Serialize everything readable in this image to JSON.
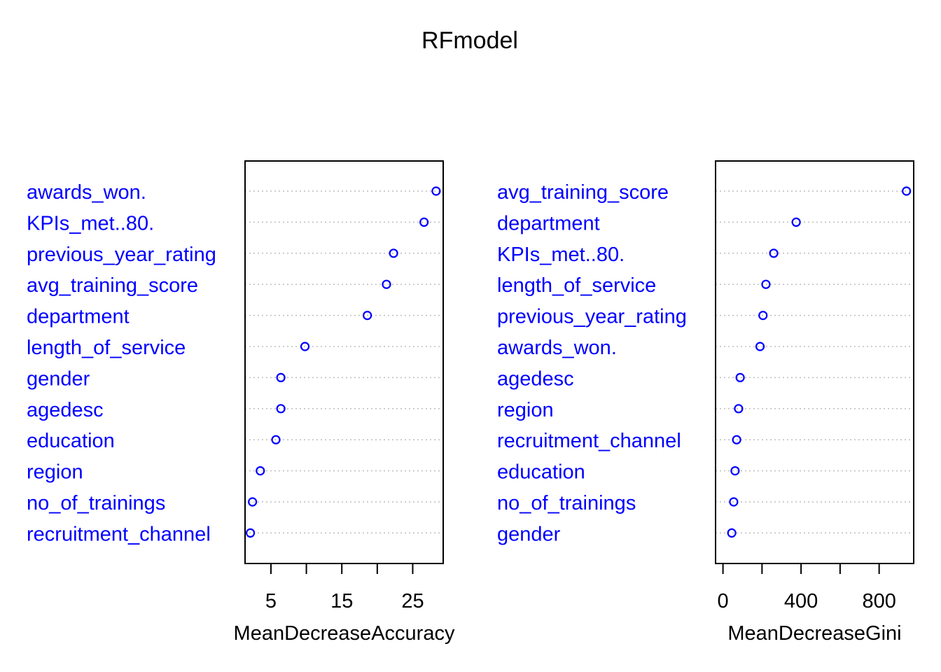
{
  "title": "RFmodel",
  "colors": {
    "label": "#0000ff",
    "point": "#0000ff",
    "axis": "#000000",
    "grid": "#bebebe"
  },
  "chart_data": [
    {
      "type": "scatter",
      "style": "dotchart",
      "xlabel": "MeanDecreaseAccuracy",
      "xticks": [
        5,
        10,
        15,
        20,
        25
      ],
      "xtick_labels": [
        "5",
        "",
        "15",
        "",
        "25"
      ],
      "xlim": [
        1.35,
        29.3
      ],
      "grid": "dotted-horizontal",
      "categories": [
        "awards_won.",
        "KPIs_met..80.",
        "previous_year_rating",
        "avg_training_score",
        "department",
        "length_of_service",
        "gender",
        "agedesc",
        "education",
        "region",
        "no_of_trainings",
        "recruitment_channel"
      ],
      "values": [
        28.3,
        26.6,
        22.3,
        21.3,
        18.6,
        9.8,
        6.4,
        6.4,
        5.7,
        3.5,
        2.4,
        2.1
      ]
    },
    {
      "type": "scatter",
      "style": "dotchart",
      "xlabel": "MeanDecreaseGini",
      "xticks": [
        0,
        200,
        400,
        600,
        800
      ],
      "xtick_labels": [
        "0",
        "",
        "400",
        "",
        "800"
      ],
      "xlim": [
        -38,
        977
      ],
      "grid": "dotted-horizontal",
      "categories": [
        "avg_training_score",
        "department",
        "KPIs_met..80.",
        "length_of_service",
        "previous_year_rating",
        "awards_won.",
        "agedesc",
        "region",
        "recruitment_channel",
        "education",
        "no_of_trainings",
        "gender"
      ],
      "values": [
        940,
        375,
        260,
        220,
        205,
        190,
        88,
        80,
        70,
        62,
        55,
        45
      ]
    }
  ]
}
